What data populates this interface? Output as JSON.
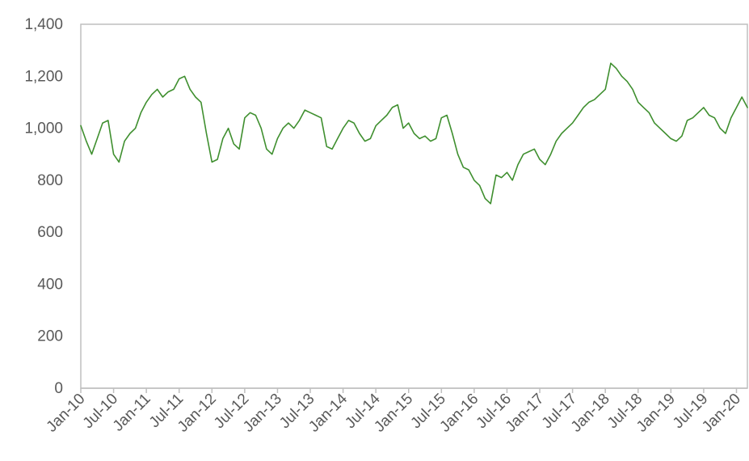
{
  "chart_data": {
    "type": "line",
    "title": "",
    "xlabel": "",
    "ylabel": "",
    "ylim": [
      0,
      1400
    ],
    "yticks": [
      0,
      200,
      400,
      600,
      800,
      1000,
      1200,
      1400
    ],
    "ytick_labels": [
      "0",
      "200",
      "400",
      "600",
      "800",
      "1,000",
      "1,200",
      "1,400"
    ],
    "xtick_labels": [
      "Jan-10",
      "Jul-10",
      "Jan-11",
      "Jul-11",
      "Jan-12",
      "Jul-12",
      "Jan-13",
      "Jul-13",
      "Jan-14",
      "Jul-14",
      "Jan-15",
      "Jul-15",
      "Jan-16",
      "Jul-16",
      "Jan-17",
      "Jul-17",
      "Jan-18",
      "Jul-18",
      "Jan-19",
      "Jul-19",
      "Jan-20"
    ],
    "xlim": [
      "2010-01",
      "2020-03"
    ],
    "grid": false,
    "legend": "none",
    "series": [
      {
        "color": "#3f8f2f",
        "x": [
          "2010-01",
          "2010-02",
          "2010-03",
          "2010-04",
          "2010-05",
          "2010-06",
          "2010-07",
          "2010-08",
          "2010-09",
          "2010-10",
          "2010-11",
          "2010-12",
          "2011-01",
          "2011-02",
          "2011-03",
          "2011-04",
          "2011-05",
          "2011-06",
          "2011-07",
          "2011-08",
          "2011-09",
          "2011-10",
          "2011-11",
          "2011-12",
          "2012-01",
          "2012-02",
          "2012-03",
          "2012-04",
          "2012-05",
          "2012-06",
          "2012-07",
          "2012-08",
          "2012-09",
          "2012-10",
          "2012-11",
          "2012-12",
          "2013-01",
          "2013-02",
          "2013-03",
          "2013-04",
          "2013-05",
          "2013-06",
          "2013-07",
          "2013-08",
          "2013-09",
          "2013-10",
          "2013-11",
          "2013-12",
          "2014-01",
          "2014-02",
          "2014-03",
          "2014-04",
          "2014-05",
          "2014-06",
          "2014-07",
          "2014-08",
          "2014-09",
          "2014-10",
          "2014-11",
          "2014-12",
          "2015-01",
          "2015-02",
          "2015-03",
          "2015-04",
          "2015-05",
          "2015-06",
          "2015-07",
          "2015-08",
          "2015-09",
          "2015-10",
          "2015-11",
          "2015-12",
          "2016-01",
          "2016-02",
          "2016-03",
          "2016-04",
          "2016-05",
          "2016-06",
          "2016-07",
          "2016-08",
          "2016-09",
          "2016-10",
          "2016-11",
          "2016-12",
          "2017-01",
          "2017-02",
          "2017-03",
          "2017-04",
          "2017-05",
          "2017-06",
          "2017-07",
          "2017-08",
          "2017-09",
          "2017-10",
          "2017-11",
          "2017-12",
          "2018-01",
          "2018-02",
          "2018-03",
          "2018-04",
          "2018-05",
          "2018-06",
          "2018-07",
          "2018-08",
          "2018-09",
          "2018-10",
          "2018-11",
          "2018-12",
          "2019-01",
          "2019-02",
          "2019-03",
          "2019-04",
          "2019-05",
          "2019-06",
          "2019-07",
          "2019-08",
          "2019-09",
          "2019-10",
          "2019-11",
          "2019-12",
          "2020-01",
          "2020-02",
          "2020-03"
        ],
        "values": [
          1010,
          950,
          900,
          960,
          1020,
          1030,
          900,
          870,
          950,
          980,
          1000,
          1060,
          1100,
          1130,
          1150,
          1120,
          1140,
          1150,
          1190,
          1200,
          1150,
          1120,
          1100,
          980,
          870,
          880,
          960,
          1000,
          940,
          920,
          1040,
          1060,
          1050,
          1000,
          920,
          900,
          960,
          1000,
          1020,
          1000,
          1030,
          1070,
          1060,
          1050,
          1040,
          930,
          920,
          960,
          1000,
          1030,
          1020,
          980,
          950,
          960,
          1010,
          1030,
          1050,
          1080,
          1090,
          1000,
          1020,
          980,
          960,
          970,
          950,
          960,
          1040,
          1050,
          980,
          900,
          850,
          840,
          800,
          780,
          730,
          710,
          820,
          810,
          830,
          800,
          860,
          900,
          910,
          920,
          880,
          860,
          900,
          950,
          980,
          1000,
          1020,
          1050,
          1080,
          1100,
          1110,
          1130,
          1150,
          1250,
          1230,
          1200,
          1180,
          1150,
          1100,
          1080,
          1060,
          1020,
          1000,
          980,
          960,
          950,
          970,
          1030,
          1040,
          1060,
          1080,
          1050,
          1040,
          1000,
          980,
          1040,
          1080,
          1120,
          1080
        ]
      }
    ]
  }
}
